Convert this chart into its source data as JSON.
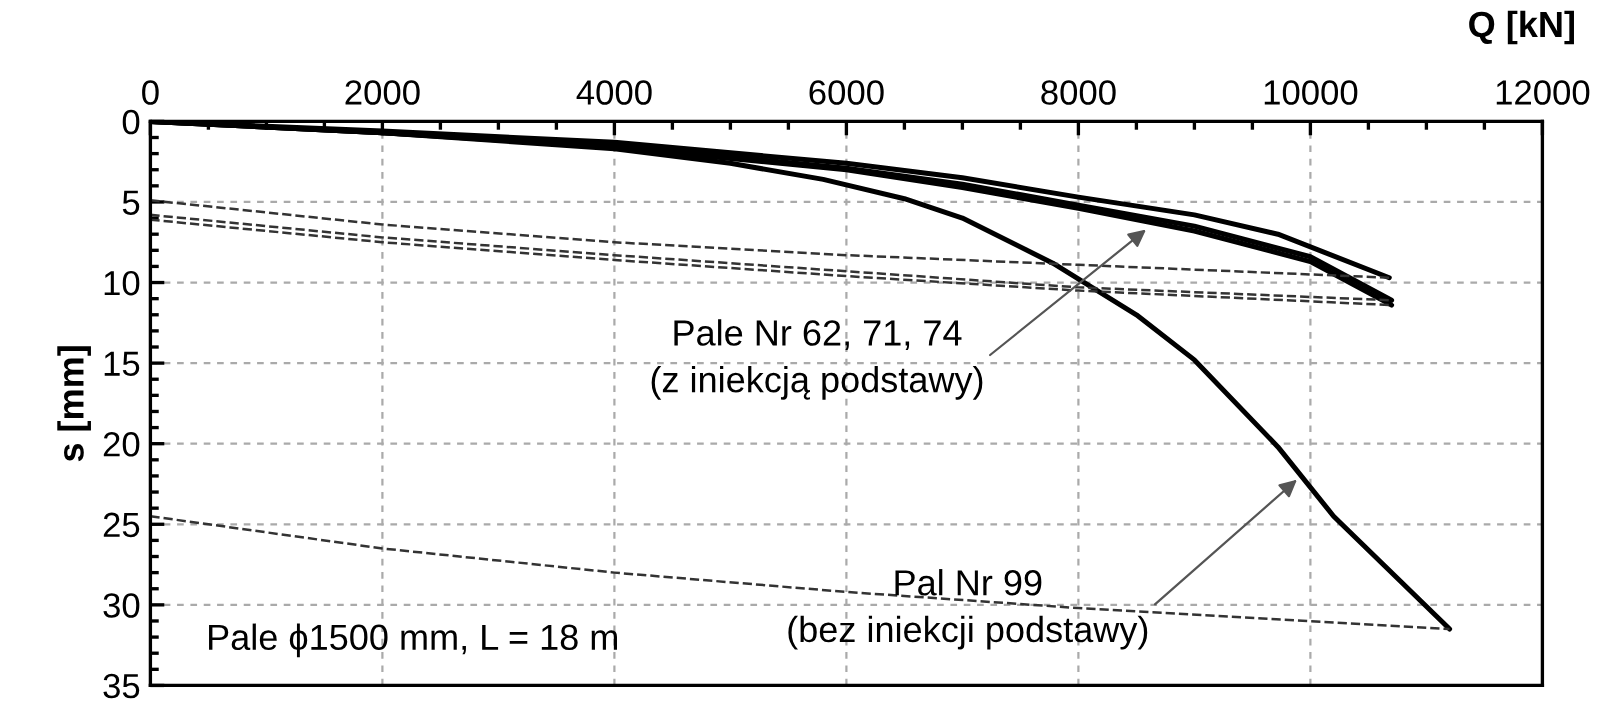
{
  "chart_data": {
    "type": "line",
    "xlabel": "Q [kN]",
    "ylabel": "s [mm]",
    "xlim": [
      0,
      12000
    ],
    "xticks": [
      0,
      2000,
      4000,
      6000,
      8000,
      10000,
      12000
    ],
    "ylim": [
      35,
      0
    ],
    "yticks": [
      0,
      5,
      10,
      15,
      20,
      25,
      30,
      35
    ],
    "grid": true,
    "marker": "none",
    "series": [
      {
        "color": "#000000",
        "line_style": "solid",
        "x": [
          0,
          2000,
          4000,
          6000,
          7000,
          8000,
          9000,
          9720,
          10680
        ],
        "values": [
          0,
          0.6,
          1.3,
          2.6,
          3.5,
          4.7,
          5.8,
          7.0,
          9.7
        ]
      },
      {
        "color": "#000000",
        "line_style": "solid",
        "x": [
          0,
          2000,
          4000,
          6000,
          7000,
          8000,
          9000,
          10000,
          10700
        ],
        "values": [
          0,
          0.7,
          1.5,
          2.9,
          3.9,
          5.2,
          6.5,
          8.4,
          11.1
        ]
      },
      {
        "color": "#000000",
        "line_style": "solid",
        "x": [
          0,
          2000,
          4000,
          6000,
          7000,
          8000,
          9000,
          10000,
          10700
        ],
        "values": [
          0,
          0.7,
          1.6,
          3.0,
          4.1,
          5.4,
          6.8,
          8.7,
          11.4
        ]
      },
      {
        "color": "#000000",
        "line_style": "solid",
        "x": [
          0,
          2000,
          4000,
          5000,
          5800,
          6500,
          7000,
          7780,
          8500,
          9000,
          9720,
          10200,
          11200
        ],
        "values": [
          0,
          0.7,
          1.7,
          2.6,
          3.6,
          4.8,
          6.0,
          8.8,
          12.0,
          14.8,
          20.2,
          24.5,
          31.5
        ]
      },
      {
        "color": "#333333",
        "line_style": "dashed",
        "x": [
          0,
          2000,
          4000,
          6000,
          8000,
          10680
        ],
        "values": [
          4.9,
          6.4,
          7.5,
          8.3,
          8.9,
          9.7
        ]
      },
      {
        "color": "#333333",
        "line_style": "dashed",
        "x": [
          0,
          2000,
          4000,
          6000,
          8000,
          10700
        ],
        "values": [
          5.8,
          7.2,
          8.3,
          9.3,
          10.3,
          11.1
        ]
      },
      {
        "color": "#333333",
        "line_style": "dashed",
        "x": [
          0,
          2000,
          4000,
          6000,
          8000,
          10700
        ],
        "values": [
          6.1,
          7.5,
          8.6,
          9.6,
          10.5,
          11.4
        ]
      },
      {
        "color": "#333333",
        "line_style": "dashed",
        "x": [
          0,
          2000,
          4000,
          6000,
          8000,
          11200
        ],
        "values": [
          24.5,
          26.5,
          28.0,
          29.2,
          30.2,
          31.5
        ]
      }
    ],
    "annotations": [
      {
        "text": "Pale Nr 62, 71, 74\n(z iniekcją podstawy)",
        "x": 8620,
        "y": 6.5
      },
      {
        "text": "Pal Nr 99\n(bez iniekcji podstawy)",
        "x": 9920,
        "y": 22
      },
      "Pale ϕ1500 mm, L = 18 m"
    ]
  }
}
